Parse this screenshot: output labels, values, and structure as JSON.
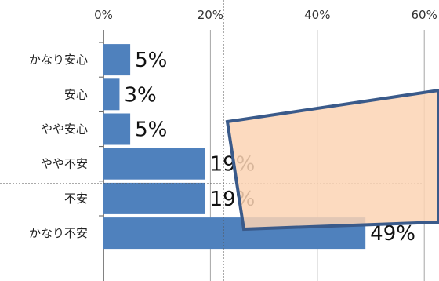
{
  "chart_data": {
    "type": "bar",
    "orientation": "horizontal",
    "categories": [
      "かなり安心",
      "安心",
      "やや安心",
      "やや不安",
      "不安",
      "かなり不安"
    ],
    "values": [
      5,
      3,
      5,
      19,
      19,
      49
    ],
    "data_labels": [
      "5%",
      "3%",
      "5%",
      "19%",
      "19%",
      "49%"
    ],
    "x_ticks": [
      "0%",
      "20%",
      "40%",
      "60%"
    ],
    "xlim": [
      0,
      62
    ],
    "grid": true,
    "legend": "none",
    "title": "",
    "xlabel": "",
    "ylabel": ""
  },
  "colors": {
    "bar": "#4f81bd",
    "grid": "#a6a6a6",
    "overlay_fill": "#fbd4b4",
    "overlay_stroke": "#3a5a8a"
  }
}
